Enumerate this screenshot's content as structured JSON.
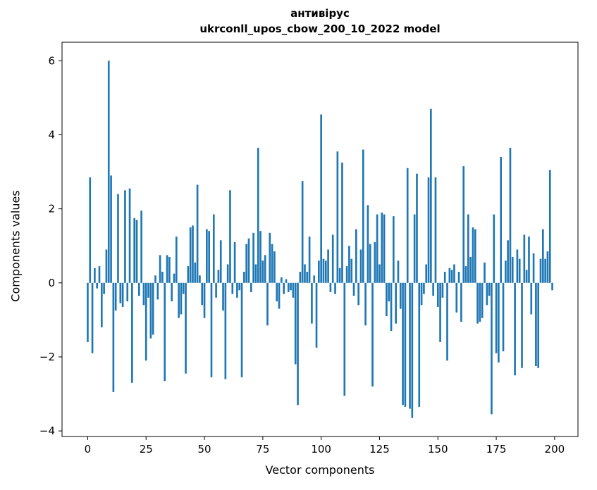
{
  "chart_data": {
    "type": "bar",
    "title_line1": "антивірус",
    "title_line2": "ukrconll_upos_cbow_200_10_2022 model",
    "xlabel": "Vector components",
    "ylabel": "Components values",
    "xticks": [
      0,
      25,
      50,
      75,
      100,
      125,
      150,
      175,
      200
    ],
    "yticks": [
      -4,
      -2,
      0,
      2,
      4,
      6
    ],
    "xlim": [
      -11,
      210
    ],
    "ylim": [
      -4.15,
      6.5
    ],
    "bar_color": "#1f77b4",
    "bar_width": 0.8,
    "grid": false,
    "legend": null,
    "values": [
      -1.6,
      2.85,
      -1.9,
      0.4,
      -0.15,
      0.45,
      -1.2,
      -0.3,
      0.9,
      6.0,
      2.9,
      -2.95,
      -0.75,
      2.4,
      -0.55,
      -0.65,
      2.5,
      -0.5,
      2.55,
      -2.7,
      1.75,
      1.7,
      -0.35,
      1.95,
      -0.6,
      -2.1,
      -0.4,
      -1.5,
      -1.4,
      0.2,
      -0.45,
      0.75,
      0.3,
      -2.65,
      0.75,
      0.7,
      -0.5,
      0.25,
      1.25,
      -0.95,
      -0.85,
      -0.3,
      -2.45,
      0.45,
      1.5,
      1.55,
      0.55,
      2.65,
      0.2,
      -0.6,
      -0.95,
      1.45,
      1.4,
      -2.55,
      1.85,
      -0.4,
      0.35,
      1.15,
      -0.75,
      -2.6,
      0.5,
      2.5,
      -0.3,
      1.1,
      -0.4,
      -0.2,
      -2.55,
      0.3,
      1.05,
      1.2,
      -0.25,
      1.35,
      0.5,
      3.65,
      1.4,
      0.6,
      0.75,
      -1.15,
      1.35,
      1.05,
      0.85,
      -0.5,
      -0.7,
      0.15,
      -0.3,
      0.1,
      -0.25,
      -0.2,
      -0.4,
      -2.2,
      -3.3,
      0.3,
      2.75,
      0.5,
      0.3,
      1.25,
      -1.1,
      0.2,
      -1.75,
      0.6,
      4.55,
      0.65,
      0.6,
      0.9,
      -0.25,
      1.3,
      -0.3,
      3.55,
      0.4,
      3.25,
      -3.05,
      0.45,
      1.0,
      0.65,
      -0.35,
      1.45,
      -0.6,
      0.9,
      3.6,
      -1.15,
      2.1,
      1.05,
      -2.8,
      1.1,
      1.85,
      0.5,
      1.9,
      1.85,
      -0.9,
      -0.5,
      -1.3,
      1.8,
      -1.1,
      0.6,
      -0.7,
      -3.3,
      -3.35,
      3.1,
      -3.4,
      -3.65,
      1.85,
      2.95,
      -3.35,
      -0.6,
      -0.3,
      0.5,
      2.85,
      4.7,
      -0.35,
      2.85,
      -0.65,
      -1.6,
      -0.4,
      0.3,
      -2.1,
      0.4,
      0.35,
      0.5,
      -0.8,
      0.3,
      -1.05,
      3.15,
      0.45,
      1.85,
      0.7,
      1.5,
      1.45,
      -1.1,
      -1.05,
      -0.95,
      0.55,
      -0.6,
      -0.35,
      -3.55,
      1.85,
      -1.9,
      -2.15,
      3.4,
      -1.85,
      0.6,
      1.15,
      3.65,
      0.7,
      -2.5,
      0.9,
      0.65,
      -2.3,
      1.3,
      0.35,
      1.25,
      -0.85,
      0.8,
      -2.25,
      -2.3,
      0.65,
      1.45,
      0.65,
      0.85,
      3.05,
      -0.2
    ]
  }
}
